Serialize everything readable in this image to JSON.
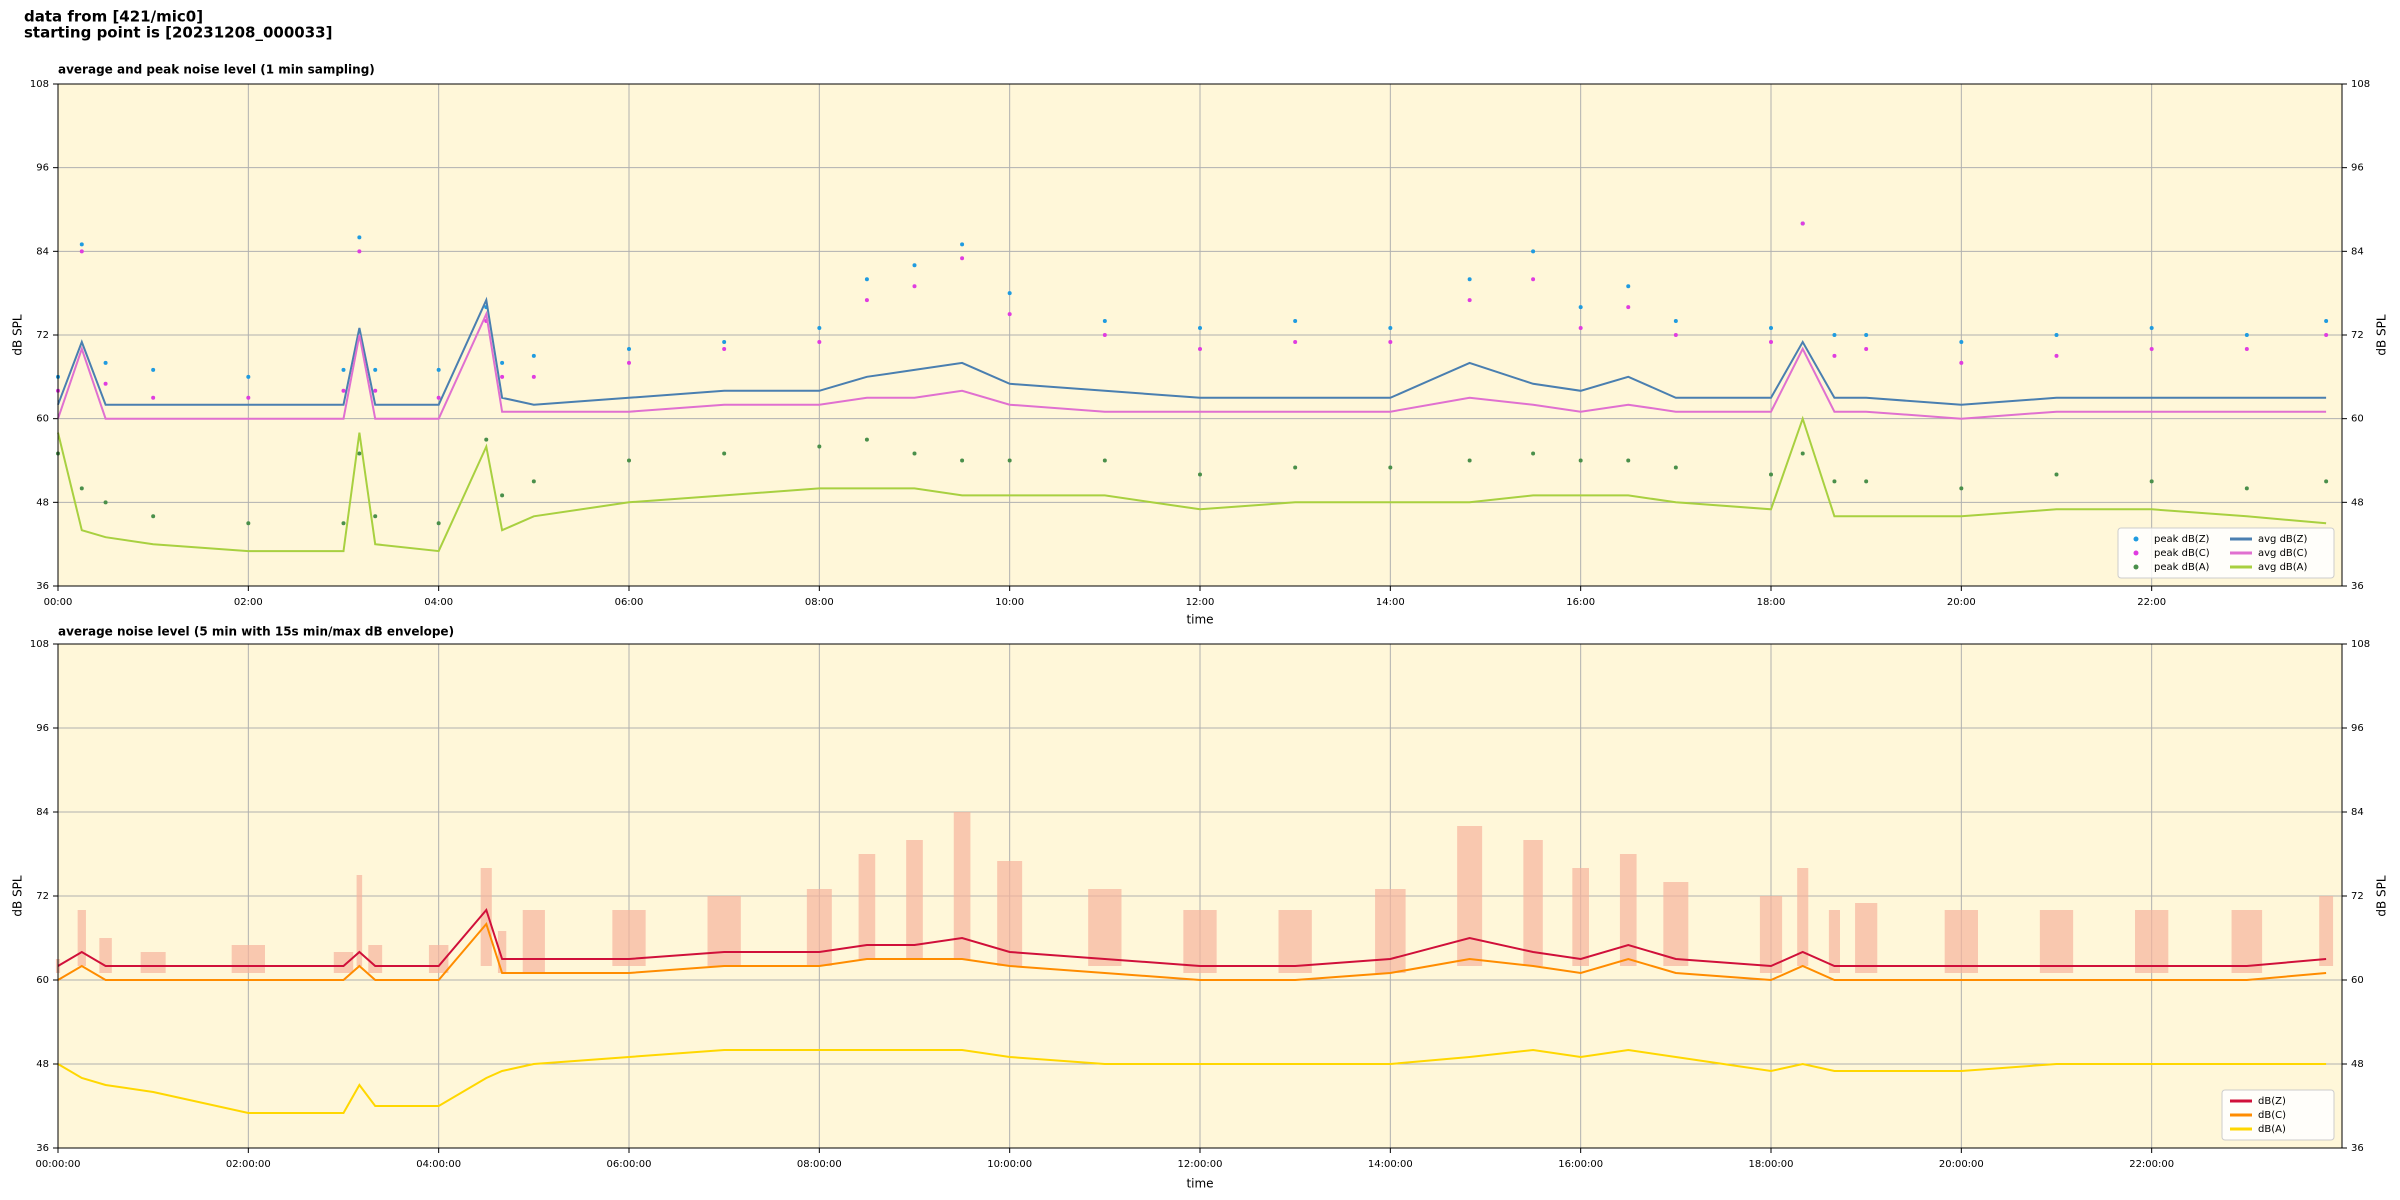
{
  "header": [
    "data from [421/mic0]",
    "starting point is [20231208_000033]"
  ],
  "chart_data": [
    {
      "type": "line",
      "title": "average and peak noise level (1 min sampling)",
      "x_label": "time",
      "y_label": "dB SPL",
      "x": [
        "00:00",
        "00:15",
        "00:30",
        "01:00",
        "02:00",
        "03:00",
        "03:10",
        "03:20",
        "04:00",
        "04:30",
        "04:40",
        "05:00",
        "06:00",
        "07:00",
        "08:00",
        "08:30",
        "09:00",
        "09:30",
        "10:00",
        "11:00",
        "12:00",
        "13:00",
        "14:00",
        "14:50",
        "15:30",
        "16:00",
        "16:30",
        "17:00",
        "18:00",
        "18:20",
        "18:40",
        "19:00",
        "20:00",
        "21:00",
        "22:00",
        "23:00",
        "23:50"
      ],
      "xlim": [
        "00:00",
        "24:00"
      ],
      "xticks": [
        "00:00",
        "02:00",
        "04:00",
        "06:00",
        "08:00",
        "10:00",
        "12:00",
        "14:00",
        "16:00",
        "18:00",
        "20:00",
        "22:00"
      ],
      "ylim": [
        36,
        108
      ],
      "yticks": [
        36,
        48,
        60,
        72,
        84,
        96,
        108
      ],
      "grid": true,
      "legend": "lower right",
      "background": "#fff7d9",
      "series": [
        {
          "name": "peak dB(Z)",
          "style": "dots",
          "color": "#1f9be0",
          "values": [
            66,
            85,
            68,
            67,
            66,
            67,
            86,
            67,
            67,
            76,
            68,
            69,
            70,
            71,
            73,
            80,
            82,
            85,
            78,
            74,
            73,
            74,
            73,
            80,
            84,
            76,
            79,
            74,
            73,
            88,
            72,
            72,
            71,
            72,
            73,
            72,
            74
          ]
        },
        {
          "name": "peak dB(C)",
          "style": "dots",
          "color": "#e03ce0",
          "values": [
            64,
            84,
            65,
            63,
            63,
            64,
            84,
            64,
            63,
            74,
            66,
            66,
            68,
            70,
            71,
            77,
            79,
            83,
            75,
            72,
            70,
            71,
            71,
            77,
            80,
            73,
            76,
            72,
            71,
            88,
            69,
            70,
            68,
            69,
            70,
            70,
            72
          ]
        },
        {
          "name": "peak dB(A)",
          "style": "dots",
          "color": "#4a8f4a",
          "values": [
            55,
            50,
            48,
            46,
            45,
            45,
            55,
            46,
            45,
            57,
            49,
            51,
            54,
            55,
            56,
            57,
            55,
            54,
            54,
            54,
            52,
            53,
            53,
            54,
            55,
            54,
            54,
            53,
            52,
            55,
            51,
            51,
            50,
            52,
            51,
            50,
            51
          ]
        },
        {
          "name": "avg dB(Z)",
          "style": "line",
          "color": "#4a7fb0",
          "values": [
            62,
            71,
            62,
            62,
            62,
            62,
            73,
            62,
            62,
            77,
            63,
            62,
            63,
            64,
            64,
            66,
            67,
            68,
            65,
            64,
            63,
            63,
            63,
            68,
            65,
            64,
            66,
            63,
            63,
            71,
            63,
            63,
            62,
            63,
            63,
            63,
            63
          ]
        },
        {
          "name": "avg dB(C)",
          "style": "line",
          "color": "#e070d0",
          "values": [
            60,
            70,
            60,
            60,
            60,
            60,
            72,
            60,
            60,
            75,
            61,
            61,
            61,
            62,
            62,
            63,
            63,
            64,
            62,
            61,
            61,
            61,
            61,
            63,
            62,
            61,
            62,
            61,
            61,
            70,
            61,
            61,
            60,
            61,
            61,
            61,
            61
          ]
        },
        {
          "name": "avg dB(A)",
          "style": "line",
          "color": "#a8d040",
          "values": [
            58,
            44,
            43,
            42,
            41,
            41,
            58,
            42,
            41,
            56,
            44,
            46,
            48,
            49,
            50,
            50,
            50,
            49,
            49,
            49,
            47,
            48,
            48,
            48,
            49,
            49,
            49,
            48,
            47,
            60,
            46,
            46,
            46,
            47,
            47,
            46,
            45
          ]
        }
      ]
    },
    {
      "type": "line",
      "title": "average noise level (5 min with 15s min/max dB envelope)",
      "x_label": "time",
      "y_label": "dB SPL",
      "x": [
        "00:00:00",
        "00:15:00",
        "00:30:00",
        "01:00:00",
        "02:00:00",
        "03:00:00",
        "03:10:00",
        "03:20:00",
        "04:00:00",
        "04:30:00",
        "04:40:00",
        "05:00:00",
        "06:00:00",
        "07:00:00",
        "08:00:00",
        "08:30:00",
        "09:00:00",
        "09:30:00",
        "10:00:00",
        "11:00:00",
        "12:00:00",
        "13:00:00",
        "14:00:00",
        "14:50:00",
        "15:30:00",
        "16:00:00",
        "16:30:00",
        "17:00:00",
        "18:00:00",
        "18:20:00",
        "18:40:00",
        "19:00:00",
        "20:00:00",
        "21:00:00",
        "22:00:00",
        "23:00:00",
        "23:50:00"
      ],
      "xlim": [
        "00:00:00",
        "24:00:00"
      ],
      "xticks": [
        "00:00:00",
        "02:00:00",
        "04:00:00",
        "06:00:00",
        "08:00:00",
        "10:00:00",
        "12:00:00",
        "14:00:00",
        "16:00:00",
        "18:00:00",
        "20:00:00",
        "22:00:00"
      ],
      "ylim": [
        36,
        108
      ],
      "yticks": [
        36,
        48,
        60,
        72,
        84,
        96,
        108
      ],
      "grid": true,
      "legend": "lower right",
      "background": "#fff7d9",
      "series": [
        {
          "name": "dB(Z)",
          "style": "line",
          "color": "#d0103a",
          "values": [
            62,
            64,
            62,
            62,
            62,
            62,
            64,
            62,
            62,
            70,
            63,
            63,
            63,
            64,
            64,
            65,
            65,
            66,
            64,
            63,
            62,
            62,
            63,
            66,
            64,
            63,
            65,
            63,
            62,
            64,
            62,
            62,
            62,
            62,
            62,
            62,
            63
          ],
          "envelope": {
            "color": "#f6b49c",
            "upper": [
              63,
              70,
              66,
              64,
              65,
              64,
              75,
              65,
              65,
              76,
              67,
              70,
              70,
              72,
              73,
              78,
              80,
              84,
              77,
              73,
              70,
              70,
              73,
              82,
              80,
              76,
              78,
              74,
              72,
              76,
              70,
              71,
              70,
              70,
              70,
              70,
              72
            ],
            "lower": [
              61,
              62,
              61,
              61,
              61,
              61,
              62,
              61,
              61,
              62,
              61,
              61,
              62,
              62,
              62,
              63,
              63,
              63,
              62,
              62,
              61,
              61,
              61,
              62,
              62,
              62,
              62,
              62,
              61,
              62,
              61,
              61,
              61,
              61,
              61,
              61,
              62
            ]
          }
        },
        {
          "name": "dB(C)",
          "style": "line",
          "color": "#ff8c00",
          "values": [
            60,
            62,
            60,
            60,
            60,
            60,
            62,
            60,
            60,
            68,
            61,
            61,
            61,
            62,
            62,
            63,
            63,
            63,
            62,
            61,
            60,
            60,
            61,
            63,
            62,
            61,
            63,
            61,
            60,
            62,
            60,
            60,
            60,
            60,
            60,
            60,
            61
          ]
        },
        {
          "name": "dB(A)",
          "style": "line",
          "color": "#ffd700",
          "values": [
            48,
            46,
            45,
            44,
            41,
            41,
            45,
            42,
            42,
            46,
            47,
            48,
            49,
            50,
            50,
            50,
            50,
            50,
            49,
            48,
            48,
            48,
            48,
            49,
            50,
            49,
            50,
            49,
            47,
            48,
            47,
            47,
            47,
            48,
            48,
            48,
            48
          ]
        }
      ]
    }
  ]
}
